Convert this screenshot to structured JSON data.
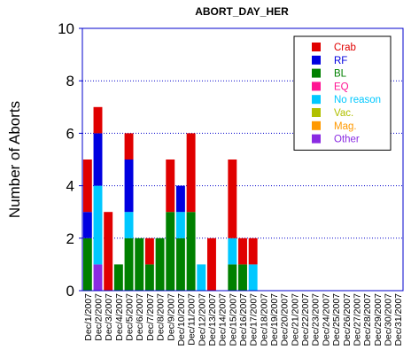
{
  "chart_data": {
    "type": "bar",
    "stacked": true,
    "title": "ABORT_DAY_HER",
    "xlabel": "",
    "ylabel": "Number of Aborts",
    "ylim": [
      0,
      10
    ],
    "yticks": [
      "0",
      "2",
      "4",
      "6",
      "8",
      "10"
    ],
    "grid": "horizontal dotted",
    "legend_position": "top-right",
    "categories": [
      "Dec/1/2007",
      "Dec/2/2007",
      "Dec/3/2007",
      "Dec/4/2007",
      "Dec/5/2007",
      "Dec/6/2007",
      "Dec/7/2007",
      "Dec/8/2007",
      "Dec/9/2007",
      "Dec/10/2007",
      "Dec/11/2007",
      "Dec/12/2007",
      "Dec/13/2007",
      "Dec/14/2007",
      "Dec/15/2007",
      "Dec/16/2007",
      "Dec/17/2007",
      "Dec/18/2007",
      "Dec/19/2007",
      "Dec/20/2007",
      "Dec/21/2007",
      "Dec/22/2007",
      "Dec/23/2007",
      "Dec/24/2007",
      "Dec/25/2007",
      "Dec/26/2007",
      "Dec/27/2007",
      "Dec/28/2007",
      "Dec/29/2007",
      "Dec/30/2007",
      "Dec/31/2007"
    ],
    "series": [
      {
        "name": "BL",
        "color": "#008000",
        "values": [
          2,
          0,
          0,
          1,
          2,
          2,
          1,
          2,
          3,
          2,
          3,
          0,
          0,
          0,
          1,
          1,
          0,
          0,
          0,
          0,
          0,
          0,
          0,
          0,
          0,
          0,
          0,
          0,
          0,
          0,
          0
        ]
      },
      {
        "name": "Other",
        "color": "#8a2be2",
        "values": [
          0,
          1,
          0,
          0,
          0,
          0,
          0,
          0,
          0,
          0,
          0,
          0,
          0,
          0,
          0,
          0,
          0,
          0,
          0,
          0,
          0,
          0,
          0,
          0,
          0,
          0,
          0,
          0,
          0,
          0,
          0
        ]
      },
      {
        "name": "No reason",
        "color": "#00c8ff",
        "values": [
          0,
          3,
          0,
          0,
          1,
          0,
          0,
          0,
          0,
          1,
          0,
          1,
          0,
          0,
          1,
          0,
          1,
          0,
          0,
          0,
          0,
          0,
          0,
          0,
          0,
          0,
          0,
          0,
          0,
          0,
          0
        ]
      },
      {
        "name": "RF",
        "color": "#0000e0",
        "values": [
          1,
          2,
          0,
          0,
          2,
          0,
          0,
          0,
          0,
          1,
          0,
          0,
          0,
          0,
          0,
          0,
          0,
          0,
          0,
          0,
          0,
          0,
          0,
          0,
          0,
          0,
          0,
          0,
          0,
          0,
          0
        ]
      },
      {
        "name": "Crab",
        "color": "#e00000",
        "values": [
          2,
          1,
          3,
          0,
          1,
          0,
          1,
          0,
          2,
          0,
          3,
          0,
          2,
          0,
          3,
          1,
          1,
          0,
          0,
          0,
          0,
          0,
          0,
          0,
          0,
          0,
          0,
          0,
          0,
          0,
          0
        ]
      },
      {
        "name": "EQ",
        "color": "#ff1493",
        "values": [
          0,
          0,
          0,
          0,
          0,
          0,
          0,
          0,
          0,
          0,
          0,
          0,
          0,
          0,
          0,
          0,
          0,
          0,
          0,
          0,
          0,
          0,
          0,
          0,
          0,
          0,
          0,
          0,
          0,
          0,
          0
        ]
      },
      {
        "name": "Vac.",
        "color": "#b0c000",
        "values": [
          0,
          0,
          0,
          0,
          0,
          0,
          0,
          0,
          0,
          0,
          0,
          0,
          0,
          0,
          0,
          0,
          0,
          0,
          0,
          0,
          0,
          0,
          0,
          0,
          0,
          0,
          0,
          0,
          0,
          0,
          0
        ]
      },
      {
        "name": "Mag.",
        "color": "#ff9900",
        "values": [
          0,
          0,
          0,
          0,
          0,
          0,
          0,
          0,
          0,
          0,
          0,
          0,
          0,
          0,
          0,
          0,
          0,
          0,
          0,
          0,
          0,
          0,
          0,
          0,
          0,
          0,
          0,
          0,
          0,
          0,
          0
        ]
      }
    ],
    "legend": [
      {
        "label": "Crab",
        "swatch": "#e00000",
        "text_color": "#e00000"
      },
      {
        "label": "RF",
        "swatch": "#0000e0",
        "text_color": "#0000e0"
      },
      {
        "label": "BL",
        "swatch": "#008000",
        "text_color": "#008000"
      },
      {
        "label": "EQ",
        "swatch": "#ff1493",
        "text_color": "#ff1493"
      },
      {
        "label": "No reason",
        "swatch": "#00c8ff",
        "text_color": "#00c8ff"
      },
      {
        "label": "Vac.",
        "swatch": "#b0c000",
        "text_color": "#b0c000"
      },
      {
        "label": "Mag.",
        "swatch": "#ff9900",
        "text_color": "#ff9900"
      },
      {
        "label": "Other",
        "swatch": "#8a2be2",
        "text_color": "#8a2be2"
      }
    ],
    "colors": {
      "frame": "#0000cc",
      "grid": "#0000cc",
      "text": "#000000"
    }
  }
}
